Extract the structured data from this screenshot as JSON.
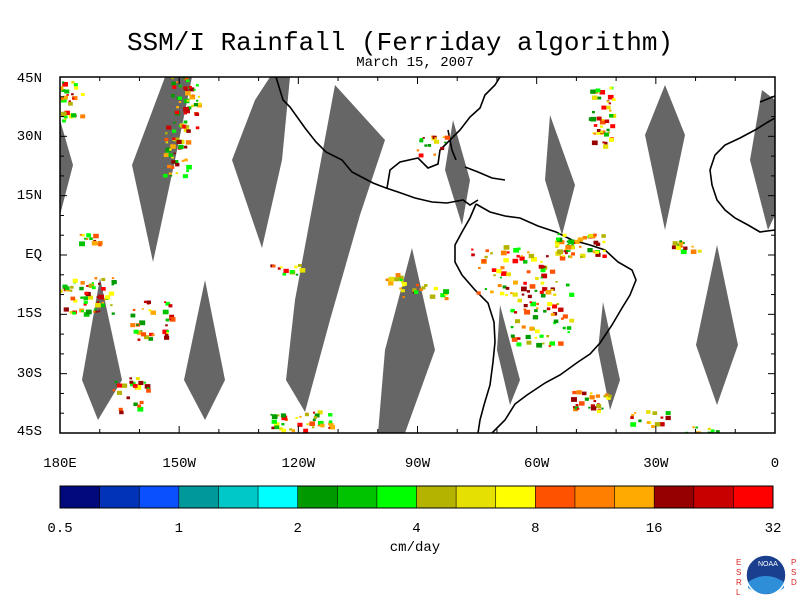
{
  "title": "SSM/I Rainfall (Ferriday algorithm)",
  "subtitle": "March 15, 2007",
  "map": {
    "lat_labels": [
      "45N",
      "30N",
      "15N",
      "EQ",
      "15S",
      "30S",
      "45S"
    ],
    "lon_labels": [
      "180E",
      "150W",
      "120W",
      "90W",
      "60W",
      "30W",
      "0"
    ],
    "extent": {
      "lon_min": -180,
      "lon_max": 0,
      "lat_min": -45,
      "lat_max": 45
    },
    "no_data_color": "#666666",
    "land_outline_color": "#000000"
  },
  "colorbar": {
    "colors": [
      "#000a7a",
      "#0033b8",
      "#0a50ff",
      "#00999b",
      "#00c8c8",
      "#00ffff",
      "#009a00",
      "#00c300",
      "#00ff00",
      "#b4b400",
      "#e6e000",
      "#ffff00",
      "#ff5200",
      "#ff8000",
      "#ffaa00",
      "#960000",
      "#c80000",
      "#ff0000"
    ],
    "tick_labels": [
      "0.5",
      "1",
      "2",
      "4",
      "8",
      "16",
      "32"
    ],
    "unit": "cm/day"
  },
  "logo": {
    "name": "noaa-logo",
    "text": "NOAA",
    "left_letters": [
      "E",
      "S",
      "R",
      "L"
    ],
    "right_letters": [
      "P",
      "S",
      "D"
    ]
  }
}
